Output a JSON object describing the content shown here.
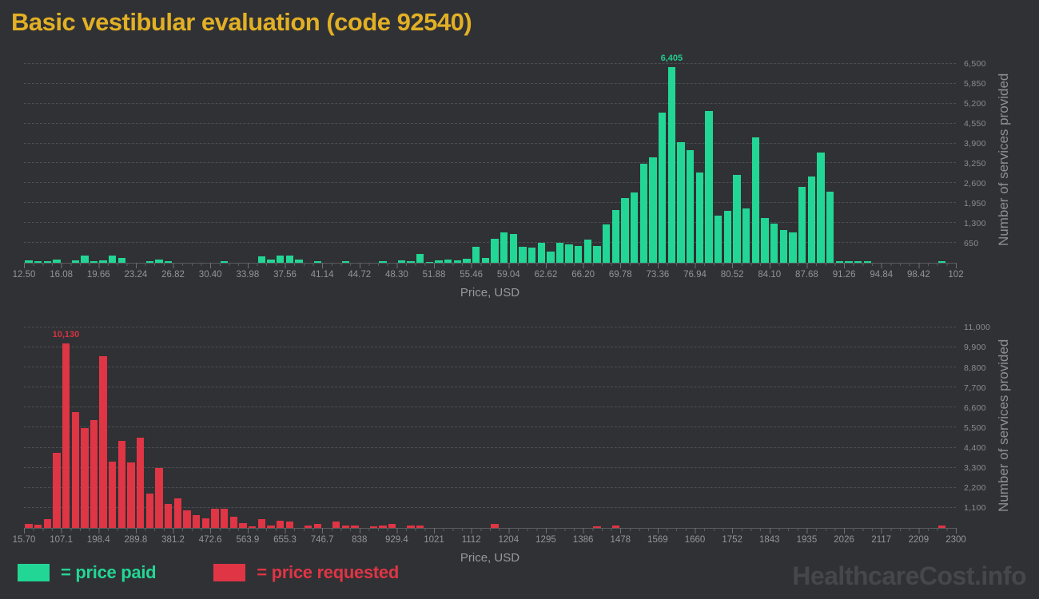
{
  "title": "Basic vestibular evaluation (code 92540)",
  "watermark": "HealthcareCost.info",
  "colors": {
    "background": "#303134",
    "title_gold": "#e2b025",
    "paid_green": "#22d795",
    "requested_red": "#df3545",
    "grid_gray": "#4c4e51",
    "axis_text_gray": "#939497",
    "watermark_gray": "#46474b"
  },
  "legend": [
    {
      "label": "= price paid",
      "color": "#22d795"
    },
    {
      "label": "= price requested",
      "color": "#df3545"
    }
  ],
  "chart_data": [
    {
      "type": "bar",
      "name": "price paid",
      "color": "#22d795",
      "xlabel": "Price, USD",
      "ylabel": "Number of services provided",
      "ylim": [
        0,
        6760
      ],
      "y_tick_step": 650,
      "y_tick_labels": [
        "650",
        "1,300",
        "1,950",
        "2,600",
        "3,250",
        "3,900",
        "4,550",
        "5,200",
        "5,850",
        "6,500"
      ],
      "x_tick_labels": [
        "12.50",
        "16.08",
        "19.66",
        "23.24",
        "26.82",
        "30.40",
        "33.98",
        "37.56",
        "41.14",
        "44.72",
        "48.30",
        "51.88",
        "55.46",
        "59.04",
        "62.62",
        "66.20",
        "69.78",
        "73.36",
        "76.94",
        "80.52",
        "84.10",
        "87.68",
        "91.26",
        "94.84",
        "98.42",
        "102"
      ],
      "bin_start": 12.5,
      "bin_width": 0.895,
      "peak_label": "6,405",
      "values": [
        80,
        65,
        40,
        95,
        0,
        80,
        245,
        40,
        80,
        245,
        145,
        0,
        0,
        65,
        97,
        49,
        0,
        0,
        0,
        0,
        0,
        65,
        0,
        0,
        0,
        203,
        97,
        243,
        227,
        97,
        0,
        65,
        0,
        0,
        50,
        0,
        0,
        0,
        50,
        0,
        80,
        40,
        275,
        30,
        78,
        110,
        78,
        140,
        530,
        160,
        780,
        1000,
        930,
        530,
        505,
        640,
        355,
        648,
        613,
        542,
        746,
        542,
        1261,
        1714,
        2113,
        2310,
        3240,
        3445,
        4910,
        6405,
        3930,
        3690,
        2940,
        4970,
        1530,
        1690,
        2870,
        1780,
        4090,
        1450,
        1290,
        1075,
        1000,
        2490,
        2820,
        3615,
        2315,
        45,
        45,
        45,
        45,
        0,
        0,
        0,
        0,
        0,
        0,
        0,
        40,
        0
      ]
    },
    {
      "type": "bar",
      "name": "price requested",
      "color": "#df3545",
      "xlabel": "Price, USD",
      "ylabel": "Number of services provided",
      "ylim": [
        0,
        11300
      ],
      "y_tick_step": 1100,
      "y_tick_labels": [
        "1,100",
        "2,200",
        "3,300",
        "4,400",
        "5,500",
        "6,600",
        "7,700",
        "8,800",
        "9,900",
        "11,000"
      ],
      "x_tick_labels": [
        "15.70",
        "107.1",
        "198.4",
        "289.8",
        "381.2",
        "472.6",
        "563.9",
        "655.3",
        "746.7",
        "838",
        "929.4",
        "1021",
        "1112",
        "1204",
        "1295",
        "1386",
        "1478",
        "1569",
        "1660",
        "1752",
        "1843",
        "1935",
        "2026",
        "2117",
        "2209",
        "2300"
      ],
      "bin_start": 15.7,
      "bin_width": 22.84,
      "peak_label": "10,130",
      "values": [
        230,
        170,
        500,
        4120,
        10130,
        6360,
        5490,
        5910,
        9420,
        3630,
        4790,
        3600,
        4940,
        1880,
        3300,
        1330,
        1630,
        985,
        690,
        540,
        1060,
        1030,
        610,
        285,
        80,
        490,
        150,
        380,
        370,
        0,
        150,
        225,
        0,
        370,
        150,
        120,
        0,
        75,
        120,
        225,
        0,
        150,
        150,
        0,
        0,
        0,
        0,
        0,
        0,
        0,
        225,
        0,
        0,
        0,
        0,
        0,
        0,
        0,
        0,
        0,
        0,
        75,
        0,
        120,
        0,
        0,
        0,
        0,
        0,
        0,
        0,
        0,
        0,
        0,
        0,
        0,
        0,
        0,
        0,
        0,
        0,
        0,
        0,
        0,
        0,
        0,
        0,
        0,
        0,
        0,
        0,
        0,
        0,
        0,
        0,
        0,
        0,
        0,
        120,
        0
      ]
    }
  ]
}
